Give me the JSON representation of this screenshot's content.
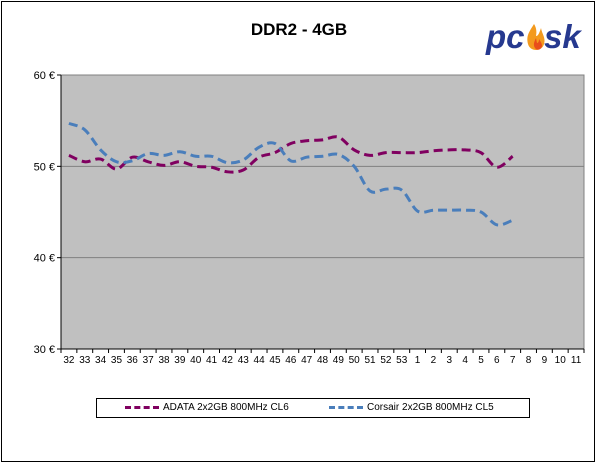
{
  "chart_data": {
    "type": "line",
    "title": "DDR2 - 4GB",
    "xlabel": "",
    "ylabel": "",
    "categories": [
      "32",
      "33",
      "34",
      "35",
      "36",
      "37",
      "38",
      "39",
      "40",
      "41",
      "42",
      "43",
      "44",
      "45",
      "46",
      "47",
      "48",
      "49",
      "50",
      "51",
      "52",
      "53",
      "1",
      "2",
      "3",
      "4",
      "5",
      "6",
      "7",
      "8",
      "9",
      "10",
      "11"
    ],
    "y_tick_labels": [
      "30 €",
      "40 €",
      "50 €",
      "60 €"
    ],
    "ylim": [
      30,
      60
    ],
    "grid": true,
    "legend_position": "bottom",
    "series": [
      {
        "name": "ADATA 2x2GB 800MHz CL6",
        "color": "#800060",
        "values": [
          51.2,
          50.5,
          50.8,
          49.7,
          51.0,
          50.5,
          50.1,
          50.5,
          50.0,
          49.9,
          49.4,
          49.6,
          51.0,
          51.5,
          52.5,
          52.8,
          52.9,
          53.2,
          51.8,
          51.2,
          51.5,
          51.5,
          51.5,
          51.7,
          51.8,
          51.8,
          51.5,
          49.9,
          51.1,
          null,
          null,
          null,
          null
        ]
      },
      {
        "name": "Corsair 2x2GB 800MHz CL5",
        "color": "#4a7ebb",
        "values": [
          54.7,
          54.0,
          51.8,
          50.5,
          50.6,
          51.4,
          51.2,
          51.6,
          51.1,
          51.1,
          50.4,
          50.7,
          52.1,
          52.5,
          50.6,
          51.0,
          51.1,
          51.3,
          50.0,
          47.3,
          47.5,
          47.4,
          45.1,
          45.2,
          45.2,
          45.2,
          45.0,
          43.6,
          44.1,
          null,
          null,
          null,
          null
        ]
      }
    ]
  },
  "logo": {
    "text_left": "pc",
    "text_right": "sk",
    "colors": {
      "text": "#26398f",
      "flame": "#f39a1e"
    }
  },
  "colors": {
    "plot_background": "#c0c0c0",
    "gridline": "#808080"
  }
}
